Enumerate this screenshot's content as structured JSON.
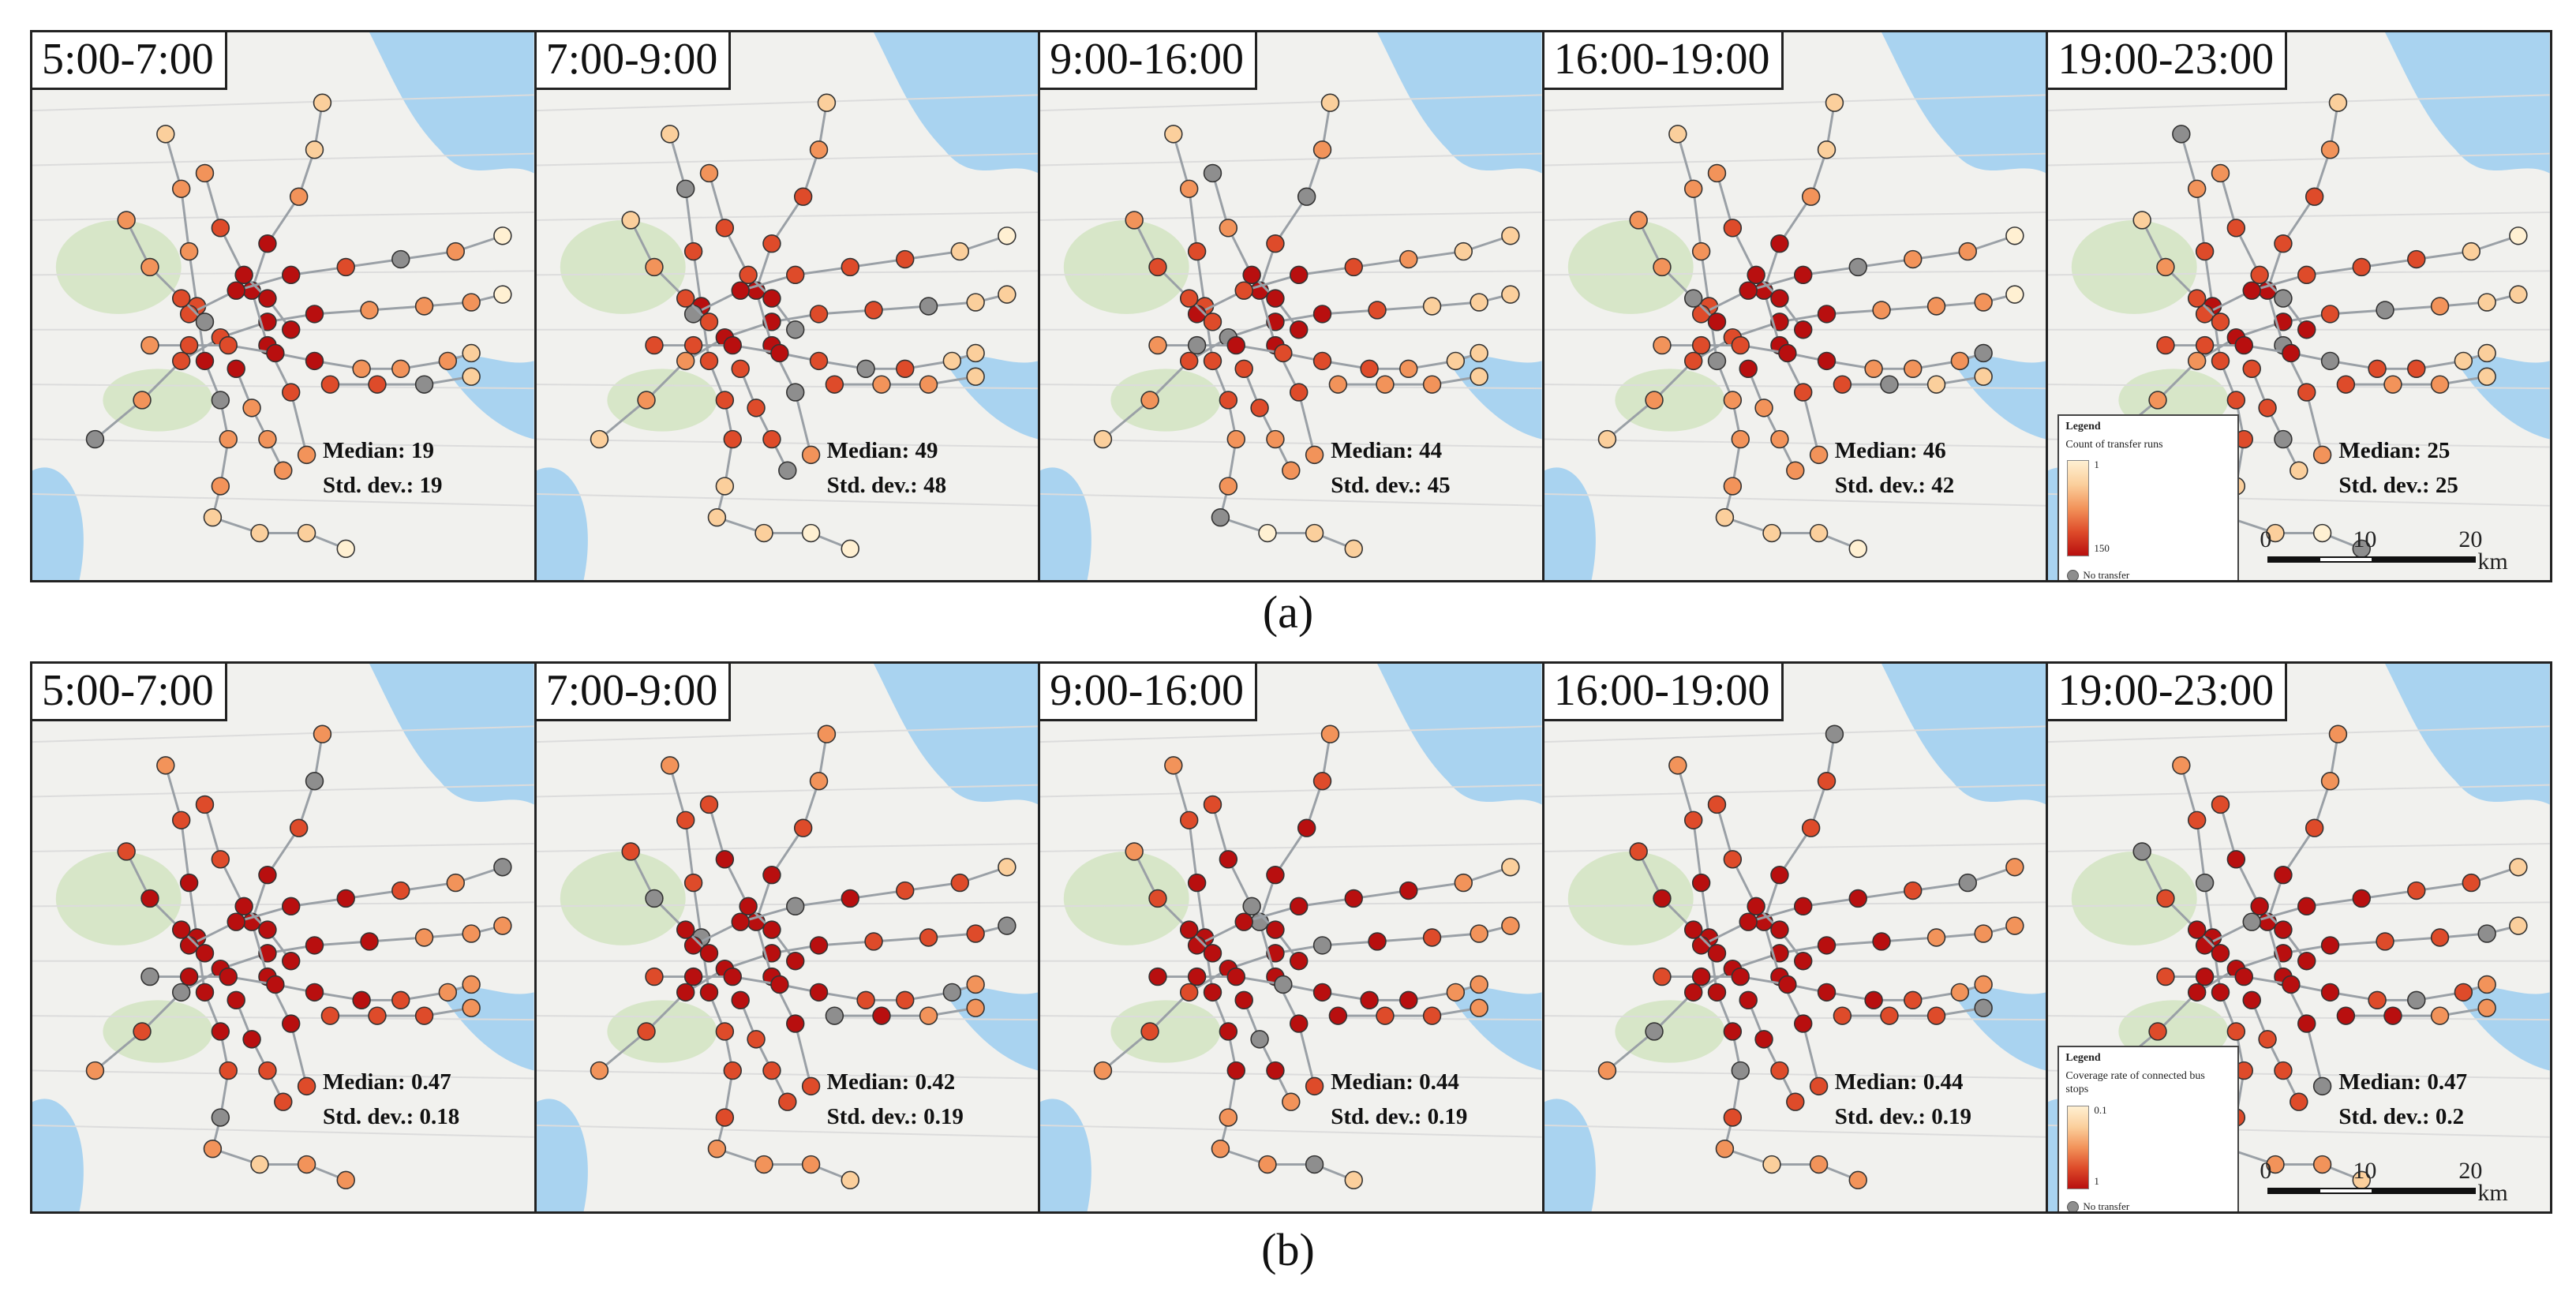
{
  "rows": [
    {
      "label": "(a)",
      "panels": [
        {
          "title": "5:00-7:00",
          "median": "Median: 19",
          "std": "Std. dev.: 19"
        },
        {
          "title": "7:00-9:00",
          "median": "Median: 49",
          "std": "Std. dev.: 48"
        },
        {
          "title": "9:00-16:00",
          "median": "Median: 44",
          "std": "Std. dev.: 45"
        },
        {
          "title": "16:00-19:00",
          "median": "Median: 46",
          "std": "Std. dev.: 42"
        },
        {
          "title": "19:00-23:00",
          "median": "Median: 25",
          "std": "Std. dev.: 25"
        }
      ],
      "legend": {
        "title": "Legend",
        "description": "Count of transfer runs",
        "min": "1",
        "max": "150",
        "no_transfer": "No transfer"
      }
    },
    {
      "label": "(b)",
      "panels": [
        {
          "title": "5:00-7:00",
          "median": "Median: 0.47",
          "std": "Std. dev.: 0.18"
        },
        {
          "title": "7:00-9:00",
          "median": "Median: 0.42",
          "std": "Std. dev.: 0.19"
        },
        {
          "title": "9:00-16:00",
          "median": "Median: 0.44",
          "std": "Std. dev.: 0.19"
        },
        {
          "title": "16:00-19:00",
          "median": "Median: 0.44",
          "std": "Std. dev.: 0.19"
        },
        {
          "title": "19:00-23:00",
          "median": "Median: 0.47",
          "std": "Std. dev.: 0.2"
        }
      ],
      "legend": {
        "title": "Legend",
        "description": "Coverage rate of connected bus stops",
        "min": "0.1",
        "max": "1",
        "no_transfer": "No transfer"
      }
    }
  ],
  "scale_bar": {
    "ticks": [
      "0",
      "10",
      "20"
    ],
    "unit": "km"
  },
  "colors": {
    "low": "#fff0d2",
    "mid_low": "#fbcf9c",
    "mid": "#f2935a",
    "mid_high": "#de4b2a",
    "high": "#b80f0f",
    "no_transfer": "#8e8e8e",
    "water": "#a9d3f0",
    "green": "#d7e6c8",
    "land": "#f1f1ee"
  }
}
